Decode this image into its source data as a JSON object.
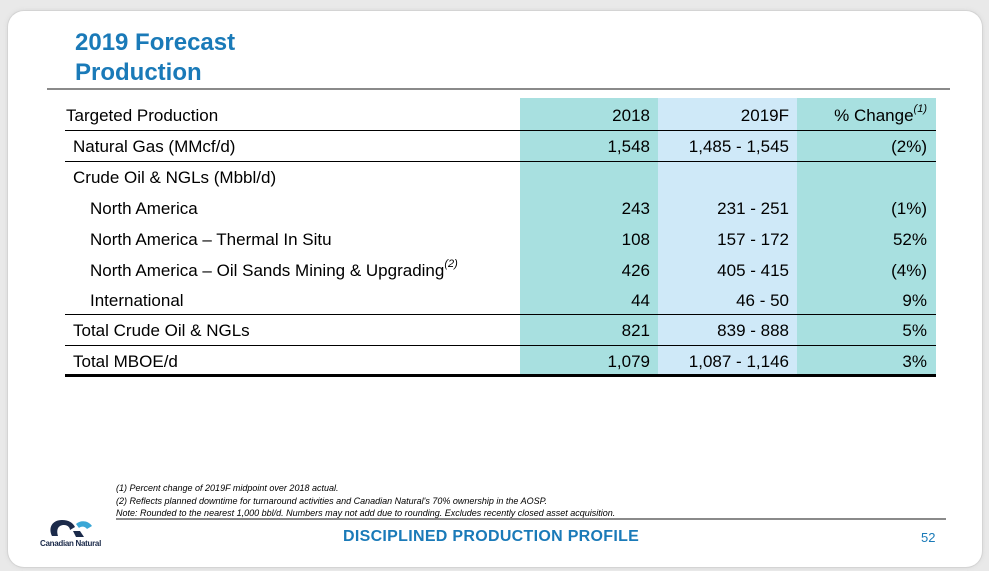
{
  "slide": {
    "title_line1": "2019 Forecast",
    "title_line2": "Production",
    "footer_title": "DISCIPLINED PRODUCTION PROFILE",
    "page_number": "52",
    "logo_text": "Canadian Natural"
  },
  "table": {
    "header": {
      "label": "Targeted Production",
      "col_2018": "2018",
      "col_2019": "2019F",
      "col_pct": "% Change",
      "col_pct_sup": "(1)"
    },
    "rows": [
      {
        "label": "Natural Gas (MMcf/d)",
        "v2018": "1,548",
        "v2019": "1,485 - 1,545",
        "pct": "(2%)"
      },
      {
        "label": "Crude Oil & NGLs (Mbbl/d)",
        "v2018": "",
        "v2019": "",
        "pct": ""
      },
      {
        "label": "North America",
        "v2018": "243",
        "v2019": "231 - 251",
        "pct": "(1%)"
      },
      {
        "label": "North America – Thermal In Situ",
        "v2018": "108",
        "v2019": "157 - 172",
        "pct": "52%"
      },
      {
        "label": "North America – Oil Sands Mining & Upgrading",
        "label_sup": "(2)",
        "v2018": "426",
        "v2019": "405 - 415",
        "pct": "(4%)"
      },
      {
        "label": "International",
        "v2018": "44",
        "v2019": "46 - 50",
        "pct": "9%"
      },
      {
        "label": "Total Crude Oil & NGLs",
        "v2018": "821",
        "v2019": "839 - 888",
        "pct": "5%"
      },
      {
        "label": "Total MBOE/d",
        "v2018": "1,079",
        "v2019": "1,087 - 1,146",
        "pct": "3%"
      }
    ]
  },
  "notes": [
    "(1)  Percent change of 2019F midpoint over 2018 actual.",
    "(2)  Reflects planned downtime for turnaround activities and Canadian Natural's 70% ownership in the AOSP.",
    "Note: Rounded to the nearest 1,000 bbl/d. Numbers may not add due to rounding. Excludes recently closed asset acquisition."
  ],
  "colors": {
    "title_blue": "#1a7ab8",
    "col_2018_fill": "#a8e0e0",
    "col_2019_fill": "#cfe9f8",
    "col_pct_fill": "#a8e0e0"
  }
}
